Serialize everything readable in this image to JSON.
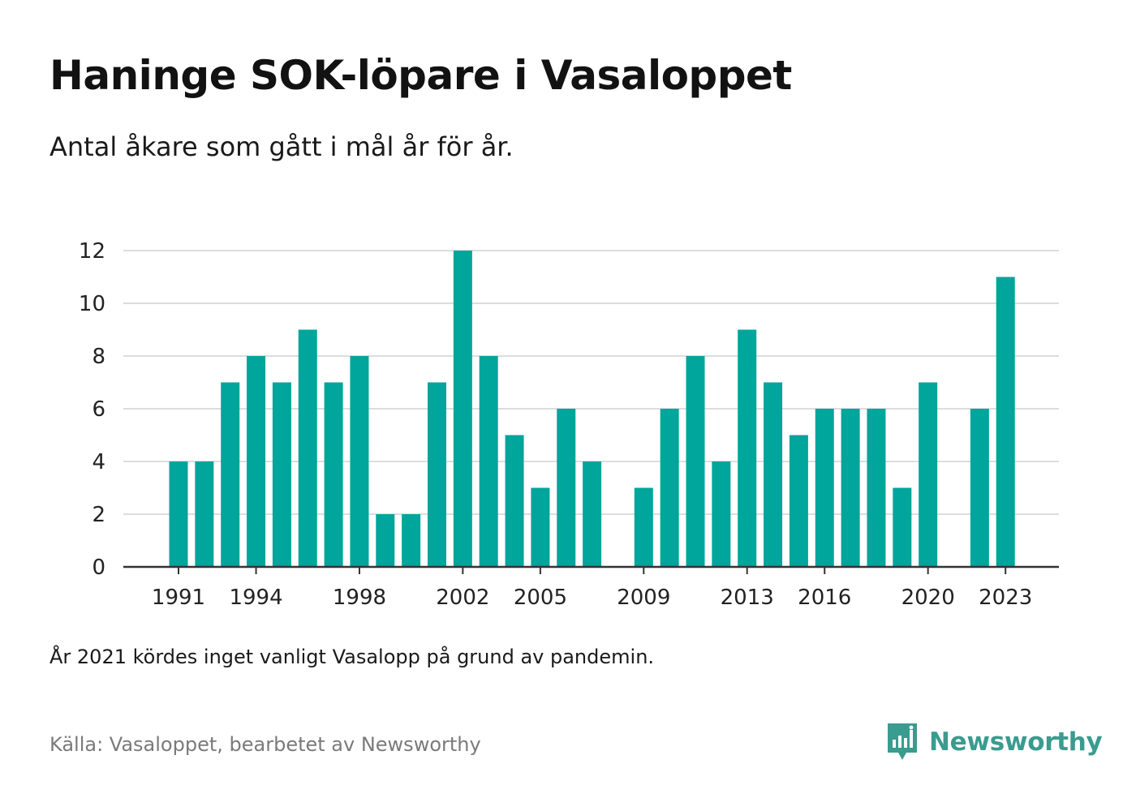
{
  "title": "Haninge SOK-löpare i Vasaloppet",
  "subtitle": "Antal åkare som gått i mål år för år.",
  "note": "År 2021 kördes inget vanligt Vasalopp på grund av pandemin.",
  "source": "Källa: Vasaloppet, bearbetet av Newsworthy",
  "brand": {
    "name": "Newsworthy",
    "icon": "newsworthy-logo-icon"
  },
  "colors": {
    "bar": "#00a59b",
    "grid": "#dddddd",
    "axis": "#333333",
    "brand": "#3a9b8f"
  },
  "chart_data": {
    "type": "bar",
    "title": "Haninge SOK-löpare i Vasaloppet",
    "xlabel": "",
    "ylabel": "",
    "ylim": [
      0,
      12
    ],
    "yticks": [
      0,
      2,
      4,
      6,
      8,
      10,
      12
    ],
    "xtick_labels": [
      1991,
      1994,
      1998,
      2002,
      2005,
      2009,
      2013,
      2016,
      2020,
      2023
    ],
    "grid": true,
    "legend": "none",
    "categories": [
      1991,
      1992,
      1993,
      1994,
      1995,
      1996,
      1997,
      1998,
      1999,
      2000,
      2001,
      2002,
      2003,
      2004,
      2005,
      2006,
      2007,
      2008,
      2009,
      2010,
      2011,
      2012,
      2013,
      2014,
      2015,
      2016,
      2017,
      2018,
      2019,
      2020,
      2021,
      2022,
      2023
    ],
    "values": [
      4,
      4,
      7,
      8,
      7,
      9,
      7,
      8,
      2,
      2,
      7,
      12,
      8,
      5,
      3,
      6,
      4,
      0,
      3,
      6,
      8,
      4,
      9,
      7,
      5,
      6,
      6,
      6,
      3,
      7,
      0,
      6,
      11
    ]
  }
}
